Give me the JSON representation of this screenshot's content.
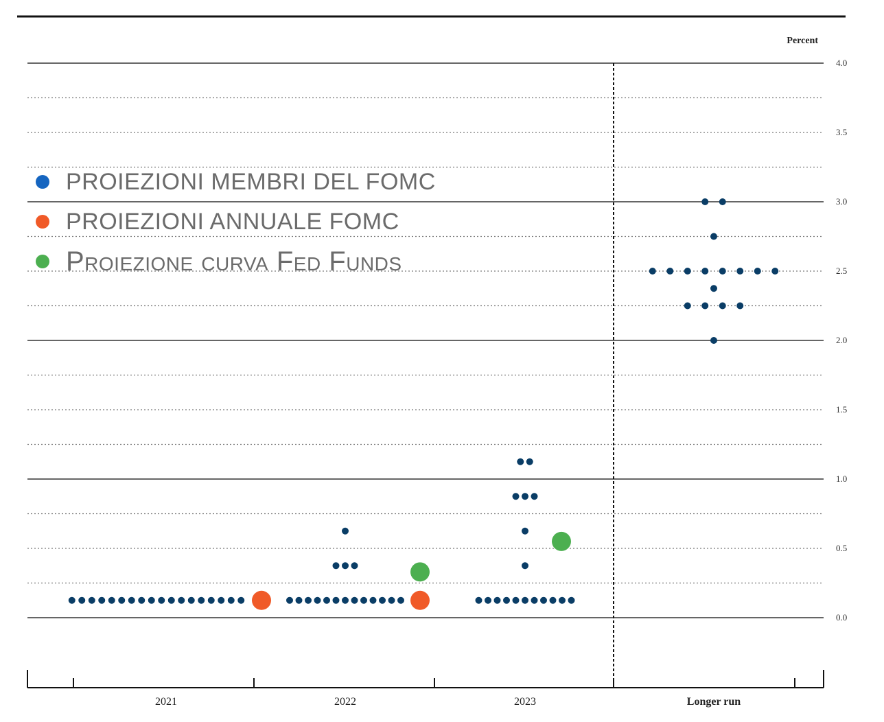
{
  "chart_data": {
    "type": "scatter",
    "unit_label": "Percent",
    "categories": [
      "2021",
      "2022",
      "2023",
      "Longer run"
    ],
    "ylim": [
      -0.5,
      4.0
    ],
    "y_tick_labels": [
      "0.0",
      "0.5",
      "1.0",
      "1.5",
      "2.0",
      "2.5",
      "3.0",
      "3.5",
      "4.0"
    ],
    "grid": true,
    "legend_placement": "top-left",
    "series": [
      {
        "name": "PROIEZIONI MEMBRI DEL FOMC",
        "color": "#0a3d66",
        "dots": [
          {
            "category": "2021",
            "value": 0.125,
            "count": 18
          },
          {
            "category": "2022",
            "value": 0.125,
            "count": 13
          },
          {
            "category": "2022",
            "value": 0.375,
            "count": 3
          },
          {
            "category": "2022",
            "value": 0.625,
            "count": 1
          },
          {
            "category": "2023",
            "value": 0.125,
            "count": 11
          },
          {
            "category": "2023",
            "value": 0.375,
            "count": 1
          },
          {
            "category": "2023",
            "value": 0.625,
            "count": 1
          },
          {
            "category": "2023",
            "value": 0.875,
            "count": 3
          },
          {
            "category": "2023",
            "value": 1.125,
            "count": 2
          },
          {
            "category": "Longer run",
            "value": 2.0,
            "count": 1
          },
          {
            "category": "Longer run",
            "value": 2.25,
            "count": 4
          },
          {
            "category": "Longer run",
            "value": 2.375,
            "count": 1
          },
          {
            "category": "Longer run",
            "value": 2.5,
            "count": 8
          },
          {
            "category": "Longer run",
            "value": 2.75,
            "count": 1
          },
          {
            "category": "Longer run",
            "value": 3.0,
            "count": 2
          }
        ]
      },
      {
        "name": "PROIEZIONI ANNUALE FOMC",
        "color": "#f05a28",
        "points": [
          {
            "category": "2021",
            "value": 0.125
          },
          {
            "category": "2022",
            "value": 0.125
          }
        ]
      },
      {
        "name": "Proiezione curva Fed Funds",
        "color": "#4caf50",
        "points": [
          {
            "category": "2022",
            "value": 0.33
          },
          {
            "category": "2023",
            "value": 0.55
          }
        ]
      }
    ]
  },
  "legend": {
    "items": [
      {
        "label": "PROIEZIONI MEMBRI DEL FOMC",
        "color": "#1565c0"
      },
      {
        "label": "PROIEZIONI ANNUALE FOMC",
        "color": "#f05a28"
      },
      {
        "label": "Proiezione curva Fed Funds",
        "color": "#4caf50"
      }
    ]
  }
}
